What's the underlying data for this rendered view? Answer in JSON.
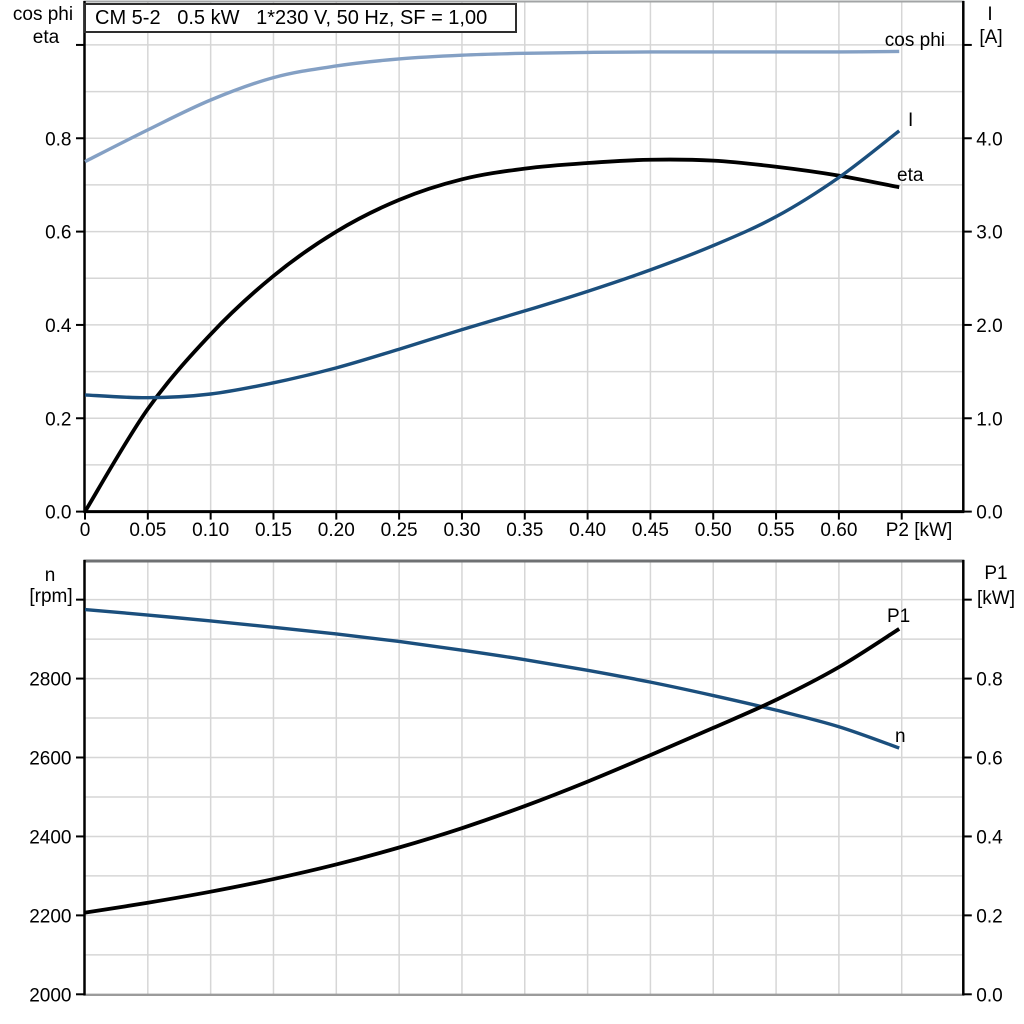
{
  "title": "CM 5-2   0.5 kW   1*230 V, 50 Hz, SF = 1,00",
  "colors": {
    "dark_blue": "#1b4f7d",
    "light_blue": "#84a0c4",
    "black": "#000000",
    "grid": "#d6d6d6",
    "frame_black": "#000000",
    "frame_gray_top": "#6f7173",
    "frame_gray_bottom": "#9b9b9b",
    "frame_gray_light": "#a2a4a5"
  },
  "chart_data": [
    {
      "type": "line",
      "title": "CM 5-2   0.5 kW   1*230 V, 50 Hz, SF = 1,00",
      "x_axis": {
        "label": "P2 [kW]",
        "tick_values": [
          0,
          0.05,
          0.1,
          0.15,
          0.2,
          0.25,
          0.3,
          0.35,
          0.4,
          0.45,
          0.5,
          0.55,
          0.6
        ],
        "tick_labels": [
          "0",
          "0.05",
          "0.10",
          "0.15",
          "0.20",
          "0.25",
          "0.30",
          "0.35",
          "0.40",
          "0.45",
          "0.50",
          "0.55",
          "0.60"
        ],
        "grid_values": [
          0.05,
          0.1,
          0.15,
          0.2,
          0.25,
          0.3,
          0.35,
          0.4,
          0.45,
          0.5,
          0.55,
          0.6,
          0.65
        ],
        "range": [
          0,
          0.6985
        ]
      },
      "left_axis": {
        "title_line1": "cos phi",
        "title_line2": "eta",
        "tick_values": [
          0,
          0.2,
          0.4,
          0.6,
          0.8
        ],
        "tick_labels": [
          "0.0",
          "0.2",
          "0.4",
          "0.6",
          "0.8"
        ],
        "extra_tick_values": [
          1.0
        ],
        "grid_values": [
          0.1,
          0.2,
          0.3,
          0.4,
          0.5,
          0.6,
          0.7,
          0.8,
          0.9,
          1.0
        ],
        "range": [
          0,
          1.092
        ]
      },
      "right_axis": {
        "title_line1": "I",
        "title_line2": "[A]",
        "tick_values": [
          0,
          1,
          2,
          3,
          4
        ],
        "tick_labels": [
          "0.0",
          "1.0",
          "2.0",
          "3.0",
          "4.0"
        ],
        "extra_tick_values": [
          5.0
        ],
        "range": [
          0,
          5.46
        ]
      },
      "x": [
        0,
        0.05,
        0.1,
        0.15,
        0.2,
        0.25,
        0.3,
        0.35,
        0.4,
        0.45,
        0.5,
        0.55,
        0.6,
        0.648
      ],
      "series": [
        {
          "name": "cos phi",
          "axis": "left",
          "color": "#84a0c4",
          "values": [
            0.75,
            0.818,
            0.882,
            0.93,
            0.955,
            0.97,
            0.978,
            0.982,
            0.984,
            0.985,
            0.985,
            0.985,
            0.985,
            0.986
          ]
        },
        {
          "name": "eta",
          "axis": "left",
          "color": "#000000",
          "values": [
            0,
            0.22,
            0.38,
            0.505,
            0.6,
            0.668,
            0.712,
            0.735,
            0.747,
            0.754,
            0.752,
            0.739,
            0.72,
            0.695
          ]
        },
        {
          "name": "I",
          "axis": "right",
          "color": "#1b4f7d",
          "values": [
            1.25,
            1.22,
            1.26,
            1.38,
            1.54,
            1.74,
            1.95,
            2.15,
            2.36,
            2.59,
            2.85,
            3.16,
            3.58,
            4.08
          ]
        }
      ]
    },
    {
      "type": "line",
      "title": "",
      "x_axis": {
        "label": "",
        "tick_values": [],
        "tick_labels": [],
        "grid_values": [
          0.05,
          0.1,
          0.15,
          0.2,
          0.25,
          0.3,
          0.35,
          0.4,
          0.45,
          0.5,
          0.55,
          0.6,
          0.65
        ],
        "range": [
          0,
          0.6985
        ]
      },
      "left_axis": {
        "title_line1": "n",
        "title_line2": "[rpm]",
        "tick_values": [
          2000,
          2200,
          2400,
          2600,
          2800
        ],
        "tick_labels": [
          "2000",
          "2200",
          "2400",
          "2600",
          "2800"
        ],
        "extra_tick_values": [
          3000
        ],
        "grid_values": [
          2100,
          2200,
          2300,
          2400,
          2500,
          2600,
          2700,
          2800,
          2900,
          3000
        ],
        "range": [
          2000,
          3098
        ]
      },
      "right_axis": {
        "title_line1": "P1",
        "title_line2": "[kW]",
        "tick_values": [
          0,
          0.2,
          0.4,
          0.6,
          0.8
        ],
        "tick_labels": [
          "0.0",
          "0.2",
          "0.4",
          "0.6",
          "0.8"
        ],
        "extra_tick_values": [
          1.0
        ],
        "range": [
          0,
          1.098
        ]
      },
      "x": [
        0,
        0.05,
        0.1,
        0.15,
        0.2,
        0.25,
        0.3,
        0.35,
        0.4,
        0.45,
        0.5,
        0.55,
        0.6,
        0.648
      ],
      "series": [
        {
          "name": "n",
          "axis": "left",
          "color": "#1b4f7d",
          "values": [
            2975,
            2961,
            2946,
            2930,
            2913,
            2894,
            2872,
            2848,
            2821,
            2791,
            2757,
            2720,
            2678,
            2624
          ]
        },
        {
          "name": "P1",
          "axis": "right",
          "color": "#000000",
          "values": [
            0.207,
            0.232,
            0.26,
            0.292,
            0.329,
            0.372,
            0.421,
            0.477,
            0.539,
            0.606,
            0.675,
            0.746,
            0.829,
            0.926
          ]
        }
      ]
    }
  ]
}
